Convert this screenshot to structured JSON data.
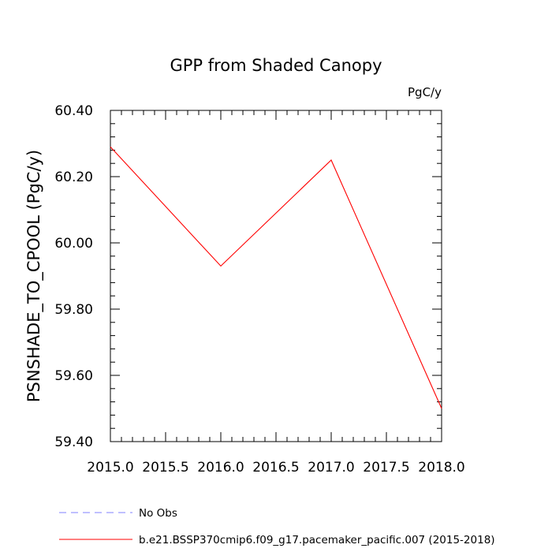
{
  "chart_data": {
    "type": "line",
    "title": "GPP from Shaded Canopy",
    "units_label": "PgC/y",
    "xlabel": "",
    "ylabel": "PSNSHADE_TO_CPOOL  (PgC/y)",
    "xlim": [
      2015.0,
      2018.0
    ],
    "ylim": [
      59.4,
      60.4
    ],
    "x_ticks": [
      "2015.0",
      "2015.5",
      "2016.0",
      "2016.5",
      "2017.0",
      "2017.5",
      "2018.0"
    ],
    "y_ticks": [
      "59.40",
      "59.60",
      "59.80",
      "60.00",
      "60.20",
      "60.40"
    ],
    "series": [
      {
        "name": "b.e21.BSSP370cmip6.f09_g17.pacemaker_pacific.007 (2015-2018)",
        "color": "#ff0000",
        "x": [
          2015,
          2016,
          2017,
          2018
        ],
        "y": [
          60.29,
          59.93,
          60.25,
          59.5
        ]
      }
    ],
    "legend": [
      {
        "label": "No Obs",
        "color": "#8080ff",
        "dash": "dashed"
      },
      {
        "label": "b.e21.BSSP370cmip6.f09_g17.pacemaker_pacific.007 (2015-2018)",
        "color": "#ff0000",
        "dash": "solid"
      }
    ],
    "legend_position": "bottom",
    "grid": false
  }
}
